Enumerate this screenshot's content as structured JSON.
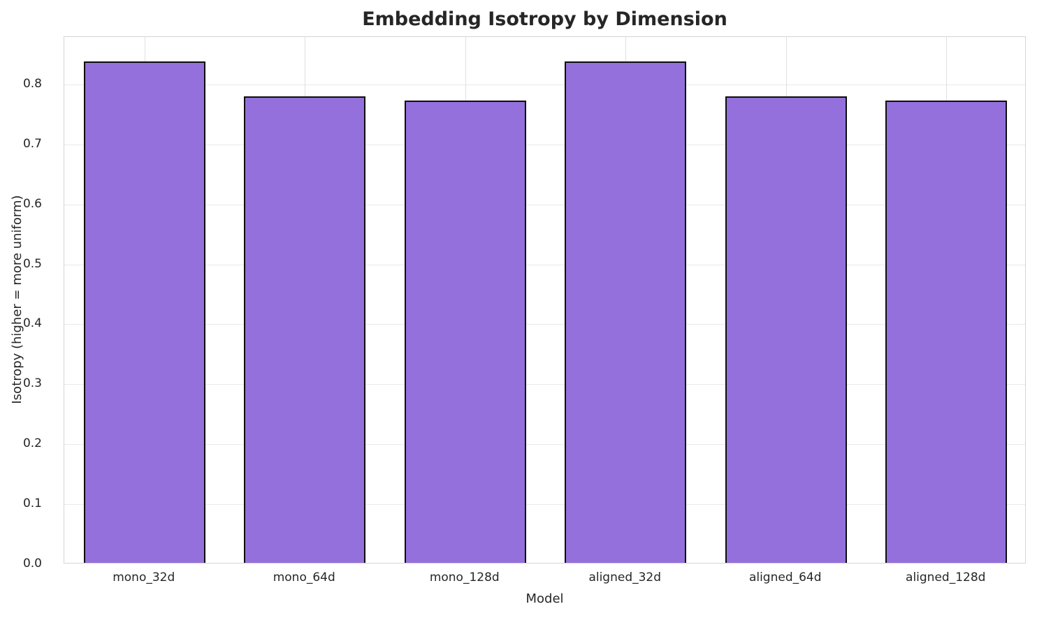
{
  "chart_data": {
    "type": "bar",
    "title": "Embedding Isotropy by Dimension",
    "xlabel": "Model",
    "ylabel": "Isotropy (higher = more uniform)",
    "categories": [
      "mono_32d",
      "mono_64d",
      "mono_128d",
      "aligned_32d",
      "aligned_64d",
      "aligned_128d"
    ],
    "values": [
      0.836,
      0.778,
      0.771,
      0.836,
      0.778,
      0.771
    ],
    "yticks": [
      0.0,
      0.1,
      0.2,
      0.3,
      0.4,
      0.5,
      0.6,
      0.7,
      0.8
    ],
    "ylim": [
      0,
      0.879
    ],
    "grid": true,
    "legend_position": "none",
    "bar_color": "#9370DB",
    "bar_edge_color": "#0d0d0d",
    "grid_color": "#e9e9e9",
    "text_color": "#262626"
  }
}
